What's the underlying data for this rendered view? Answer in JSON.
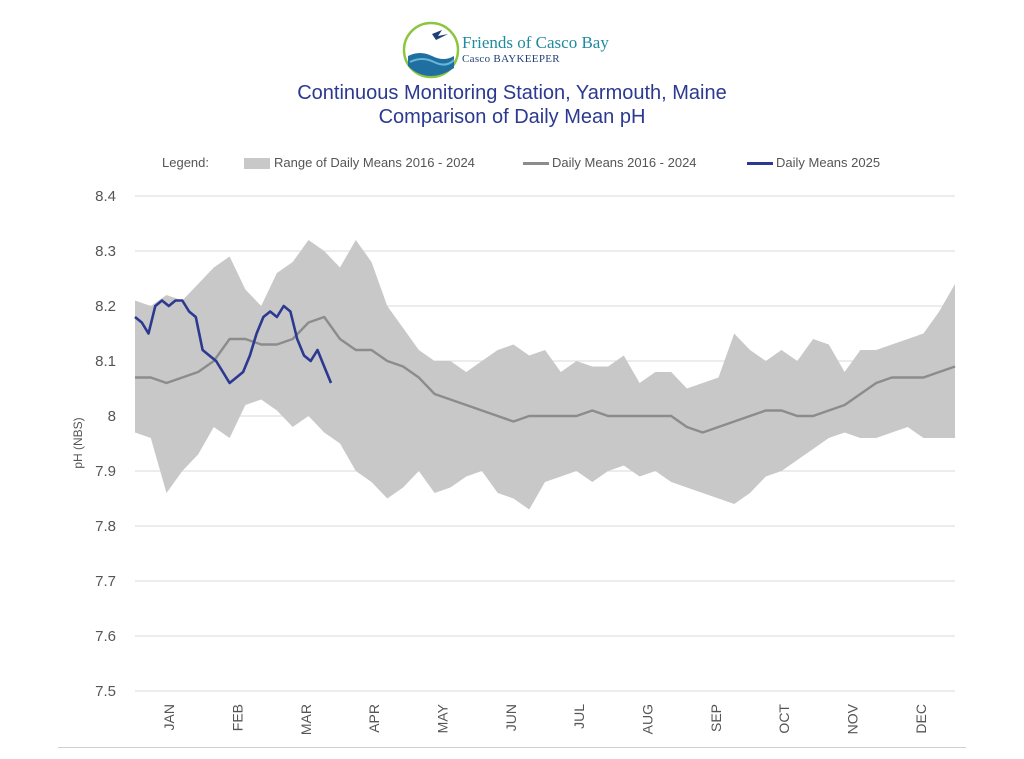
{
  "header": {
    "org_name": "Friends of Casco Bay",
    "org_sub": "Casco BAYKEEPER"
  },
  "chart_data": {
    "type": "area",
    "title": "Continuous Monitoring Station, Yarmouth, Maine",
    "subtitle": "Comparison of Daily Mean pH",
    "ylabel": "pH (NBS)",
    "xlabel": "",
    "ylim": [
      7.5,
      8.4
    ],
    "yticks": [
      "8.4",
      "8.3",
      "8.2",
      "8.1",
      "8",
      "7.9",
      "7.8",
      "7.7",
      "7.6",
      "7.5"
    ],
    "x_categories": [
      "JAN",
      "FEB",
      "MAR",
      "APR",
      "MAY",
      "JUN",
      "JUL",
      "AUG",
      "SEP",
      "OCT",
      "NOV",
      "DEC"
    ],
    "grid": "horizontal",
    "legend": {
      "position": "top",
      "label": "Legend:",
      "entries": [
        "Range of Daily Means 2016 - 2024",
        "Daily Means 2016 - 2024",
        "Daily Means 2025"
      ]
    },
    "colors": {
      "range": "#c8c8c8",
      "mean": "#8c8c8c",
      "current": "#2b3990"
    },
    "series": [
      {
        "name": "Range of Daily Means 2016 - 2024",
        "kind": "band",
        "x": [
          1,
          8,
          15,
          22,
          29,
          36,
          43,
          50,
          57,
          64,
          71,
          78,
          85,
          92,
          99,
          106,
          113,
          120,
          127,
          134,
          141,
          148,
          155,
          162,
          169,
          176,
          183,
          190,
          197,
          204,
          211,
          218,
          225,
          232,
          239,
          246,
          253,
          260,
          267,
          274,
          281,
          288,
          295,
          302,
          309,
          316,
          323,
          330,
          337,
          344,
          351,
          358,
          365
        ],
        "upper": [
          8.21,
          8.2,
          8.22,
          8.21,
          8.24,
          8.27,
          8.29,
          8.23,
          8.2,
          8.26,
          8.28,
          8.32,
          8.3,
          8.27,
          8.32,
          8.28,
          8.2,
          8.16,
          8.12,
          8.1,
          8.1,
          8.08,
          8.1,
          8.12,
          8.13,
          8.11,
          8.12,
          8.08,
          8.1,
          8.09,
          8.09,
          8.11,
          8.06,
          8.08,
          8.08,
          8.05,
          8.06,
          8.07,
          8.15,
          8.12,
          8.1,
          8.12,
          8.1,
          8.14,
          8.13,
          8.08,
          8.12,
          8.12,
          8.13,
          8.14,
          8.15,
          8.19,
          8.24
        ],
        "lower": [
          7.97,
          7.96,
          7.86,
          7.9,
          7.93,
          7.98,
          7.96,
          8.02,
          8.03,
          8.01,
          7.98,
          8.0,
          7.97,
          7.95,
          7.9,
          7.88,
          7.85,
          7.87,
          7.9,
          7.86,
          7.87,
          7.89,
          7.9,
          7.86,
          7.85,
          7.83,
          7.88,
          7.89,
          7.9,
          7.88,
          7.9,
          7.91,
          7.89,
          7.9,
          7.88,
          7.87,
          7.86,
          7.85,
          7.84,
          7.86,
          7.89,
          7.9,
          7.92,
          7.94,
          7.96,
          7.97,
          7.96,
          7.96,
          7.97,
          7.98,
          7.96,
          7.96,
          7.96
        ]
      },
      {
        "name": "Daily Means 2016 - 2024",
        "kind": "line",
        "x": [
          1,
          8,
          15,
          22,
          29,
          36,
          43,
          50,
          57,
          64,
          71,
          78,
          85,
          92,
          99,
          106,
          113,
          120,
          127,
          134,
          141,
          148,
          155,
          162,
          169,
          176,
          183,
          190,
          197,
          204,
          211,
          218,
          225,
          232,
          239,
          246,
          253,
          260,
          267,
          274,
          281,
          288,
          295,
          302,
          309,
          316,
          323,
          330,
          337,
          344,
          351,
          358,
          365
        ],
        "y": [
          8.07,
          8.07,
          8.06,
          8.07,
          8.08,
          8.1,
          8.14,
          8.14,
          8.13,
          8.13,
          8.14,
          8.17,
          8.18,
          8.14,
          8.12,
          8.12,
          8.1,
          8.09,
          8.07,
          8.04,
          8.03,
          8.02,
          8.01,
          8.0,
          7.99,
          8.0,
          8.0,
          8.0,
          8.0,
          8.01,
          8.0,
          8.0,
          8.0,
          8.0,
          8.0,
          7.98,
          7.97,
          7.98,
          7.99,
          8.0,
          8.01,
          8.01,
          8.0,
          8.0,
          8.01,
          8.02,
          8.04,
          8.06,
          8.07,
          8.07,
          8.07,
          8.08,
          8.09
        ]
      },
      {
        "name": "Daily Means 2025",
        "kind": "line",
        "x": [
          1,
          4,
          7,
          10,
          13,
          16,
          19,
          22,
          25,
          28,
          31,
          34,
          37,
          40,
          43,
          46,
          49,
          52,
          55,
          58,
          61,
          64,
          67,
          70,
          73,
          76,
          79,
          82,
          85,
          88
        ],
        "y": [
          8.18,
          8.17,
          8.15,
          8.2,
          8.21,
          8.2,
          8.21,
          8.21,
          8.19,
          8.18,
          8.12,
          8.11,
          8.1,
          8.08,
          8.06,
          8.07,
          8.08,
          8.11,
          8.15,
          8.18,
          8.19,
          8.18,
          8.2,
          8.19,
          8.14,
          8.11,
          8.1,
          8.12,
          8.09,
          8.06
        ]
      }
    ]
  }
}
